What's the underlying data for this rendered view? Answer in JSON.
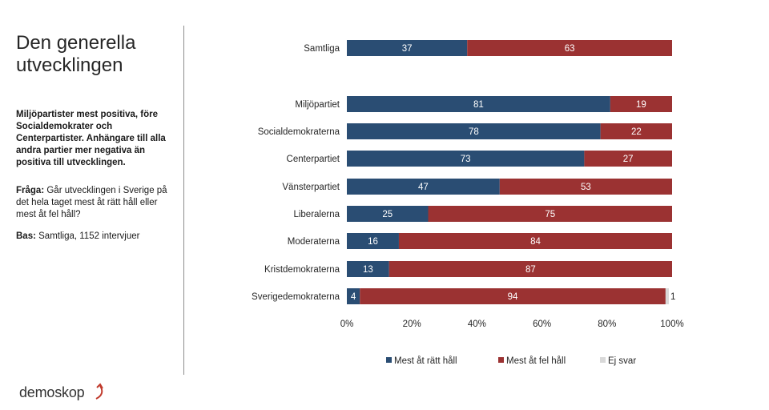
{
  "panel": {
    "title": "Den generella utvecklingen",
    "subtitle": "Miljöpartister mest positiva, före Socialdemokrater och Centerpartister. Anhängare till alla andra partier mer negativa än positiva till utvecklingen.",
    "question_label": "Fråga:",
    "question_text": " Går utvecklingen i Sverige på det hela taget mest åt rätt håll eller mest åt fel håll?",
    "base_label": "Bas:",
    "base_text": " Samtliga, 1152 intervjuer"
  },
  "logo": {
    "text": "demoskop",
    "icon": "arrow-curve-icon"
  },
  "colors": {
    "right": "#2a4d73",
    "wrong": "#9b3232",
    "none": "#d9d9d9"
  },
  "chart_data": {
    "type": "bar",
    "orientation": "horizontal",
    "stacked": true,
    "categories": [
      "Samtliga",
      "Miljöpartiet",
      "Socialdemokraterna",
      "Centerpartiet",
      "Vänsterpartiet",
      "Liberalerna",
      "Moderaterna",
      "Kristdemokraterna",
      "Sverigedemokraterna"
    ],
    "series": [
      {
        "name": "Mest åt rätt håll",
        "values": [
          37,
          81,
          78,
          73,
          47,
          25,
          16,
          13,
          4
        ]
      },
      {
        "name": "Mest åt fel håll",
        "values": [
          63,
          19,
          22,
          27,
          53,
          75,
          84,
          87,
          94
        ]
      },
      {
        "name": "Ej svar",
        "values": [
          0,
          0,
          0,
          0,
          0,
          0,
          0,
          0,
          1
        ]
      }
    ],
    "xlim": [
      0,
      100
    ],
    "xticks": [
      "0%",
      "20%",
      "40%",
      "60%",
      "80%",
      "100%"
    ],
    "legend_position": "bottom"
  }
}
